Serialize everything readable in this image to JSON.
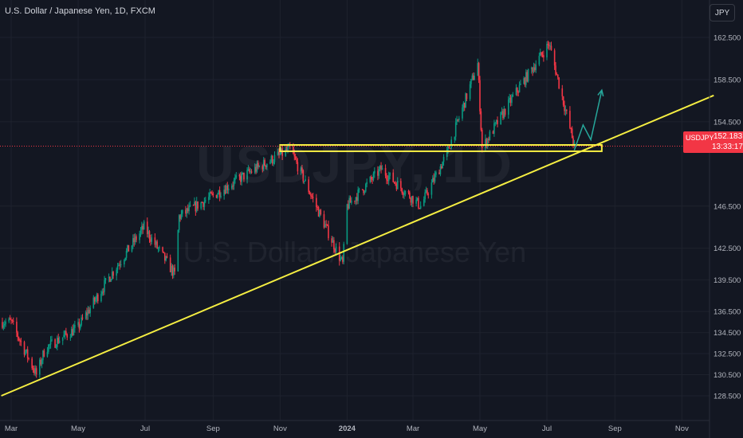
{
  "header": {
    "title": "U.S. Dollar / Japanese Yen, 1D, FXCM"
  },
  "currency_button": {
    "label": "JPY"
  },
  "watermark": {
    "symbol": "USDJPY, 1D",
    "name": "U.S. Dollar / Japanese Yen"
  },
  "price_tag": {
    "symbol": "USDJPY",
    "value": "152.183",
    "countdown": "13:33:17"
  },
  "colors": {
    "background": "#131722",
    "up": "#089981",
    "down": "#f23645",
    "grid": "#1e222d",
    "trendline": "#f5ee42",
    "projection": "#26a69a",
    "text": "#b2b5be"
  },
  "chart_data": {
    "type": "candlestick",
    "title": "U.S. Dollar / Japanese Yen, 1D, FXCM",
    "xlabel": "",
    "ylabel": "",
    "x_tick_labels": [
      "Mar",
      "May",
      "Jul",
      "Sep",
      "Nov",
      "2024",
      "Mar",
      "May",
      "Jul",
      "Sep",
      "Nov"
    ],
    "y_tick_labels": [
      "162.500",
      "158.500",
      "154.500",
      "146.500",
      "142.500",
      "139.500",
      "136.500",
      "134.500",
      "132.500",
      "130.500",
      "128.500"
    ],
    "grid": true,
    "approx_price_path": {
      "description_units": "month, price (JPY per USD)",
      "points": [
        [
          "2023-03",
          135.5
        ],
        [
          "2023-03-24",
          130.5
        ],
        [
          "2023-04",
          133.0
        ],
        [
          "2023-05",
          135.0
        ],
        [
          "2023-05-31",
          140.0
        ],
        [
          "2023-06-30",
          144.5
        ],
        [
          "2023-07-28",
          140.0
        ],
        [
          "2023-08",
          145.5
        ],
        [
          "2023-09",
          147.5
        ],
        [
          "2023-10",
          149.5
        ],
        [
          "2023-11-10",
          151.9
        ],
        [
          "2023-12-28",
          141.0
        ],
        [
          "2024-01",
          146.5
        ],
        [
          "2024-02",
          150.0
        ],
        [
          "2024-03-08",
          146.5
        ],
        [
          "2024-04",
          151.5
        ],
        [
          "2024-04-29",
          160.0
        ],
        [
          "2024-05-03",
          152.0
        ],
        [
          "2024-06",
          157.0
        ],
        [
          "2024-07-03",
          161.9
        ],
        [
          "2024-07-26",
          152.2
        ]
      ]
    },
    "current_price": 152.183,
    "annotations": [
      {
        "type": "trendline",
        "from": [
          "2023-02-20",
          128.5
        ],
        "to": [
          "2024-11-30",
          157.0
        ]
      },
      {
        "type": "horizontal-zone",
        "from": "2023-11-01",
        "to": "2024-08-20",
        "low": 151.7,
        "high": 152.3
      },
      {
        "type": "projection-arrow",
        "points": [
          [
            "2024-07-26",
            151.8
          ],
          [
            "2024-08-03",
            154.2
          ],
          [
            "2024-08-10",
            152.8
          ],
          [
            "2024-08-20",
            157.5
          ]
        ]
      }
    ]
  }
}
